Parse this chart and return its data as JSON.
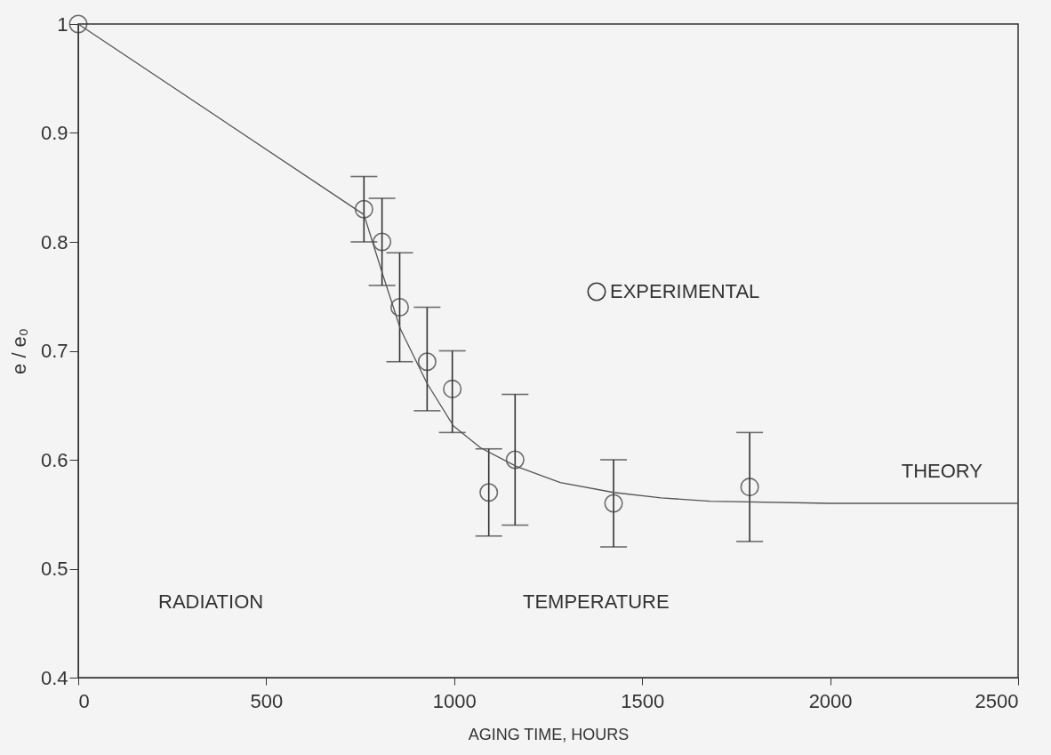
{
  "chart_data": {
    "type": "scatter",
    "xlabel": "AGING TIME, HOURS",
    "ylabel": "e / e₀",
    "xlim": [
      0,
      2500
    ],
    "xticks": [
      0,
      500,
      1000,
      1500,
      2000,
      2500
    ],
    "ylim": [
      0.4,
      1
    ],
    "yticks": [
      0.4,
      0.5,
      0.6,
      0.7,
      0.8,
      0.9,
      1
    ],
    "grid": false,
    "legend": "top right",
    "series": [
      {
        "name": "EXPERIMENTAL",
        "type": "scatter",
        "marker": "circle",
        "color": "#333333",
        "x": [
          0,
          760,
          808,
          855,
          928,
          995,
          1092,
          1162,
          1424,
          1786
        ],
        "values": [
          1.0,
          0.83,
          0.8,
          0.74,
          0.69,
          0.665,
          0.57,
          0.6,
          0.56,
          0.575
        ],
        "errors": [
          null,
          [
            0.8,
            0.86
          ],
          [
            0.76,
            0.84
          ],
          [
            0.69,
            0.79
          ],
          [
            0.645,
            0.74
          ],
          [
            0.625,
            0.7
          ],
          [
            0.53,
            0.61
          ],
          [
            0.54,
            0.66
          ],
          [
            0.52,
            0.6
          ],
          [
            0.525,
            0.625
          ]
        ]
      },
      {
        "name": "THEORY",
        "type": "line",
        "marker": "none",
        "color": "#555555",
        "line_style": "solid",
        "x": [
          0,
          760,
          810,
          857,
          928,
          998,
          1070,
          1165,
          1282,
          1424,
          1550,
          1681,
          2000,
          2500
        ],
        "values": [
          1.0,
          0.825,
          0.77,
          0.72,
          0.67,
          0.631,
          0.611,
          0.594,
          0.579,
          0.57,
          0.565,
          0.562,
          0.56,
          0.56
        ]
      }
    ],
    "annotations": [
      "RADIATION",
      "TEMPERATURE"
    ]
  }
}
